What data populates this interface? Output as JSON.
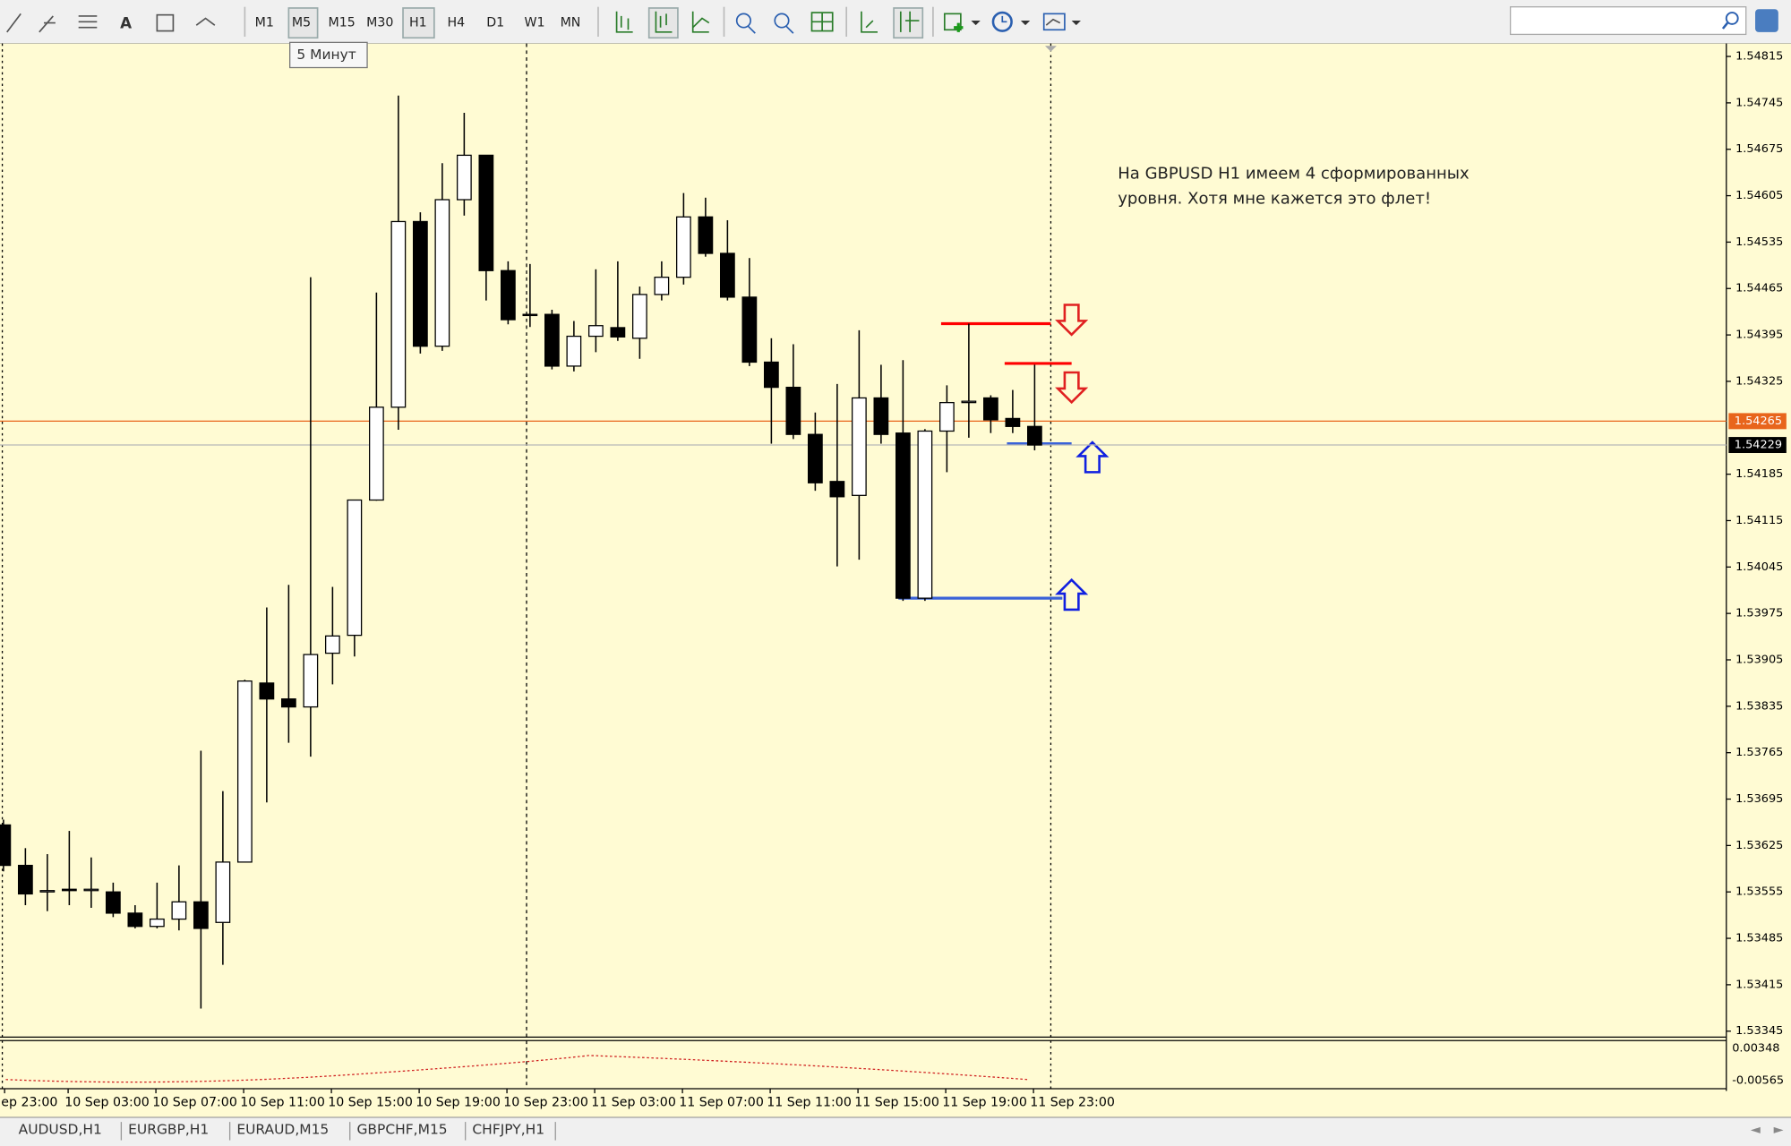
{
  "toolbar": {
    "timeframes": [
      "M1",
      "M5",
      "M15",
      "M30",
      "H1",
      "H4",
      "D1",
      "W1",
      "MN"
    ],
    "tooltip": "5 Минут"
  },
  "chart": {
    "type": "candlestick",
    "annotation": [
      "На GBPUSD H1 имеем 4 сформированных",
      "уровня.  Хотя мне кажется это флет!"
    ],
    "candles": [
      [
        1.53656,
        1.53664,
        1.53586,
        1.53595
      ],
      [
        1.53595,
        1.53621,
        1.53535,
        1.53552
      ],
      [
        1.53555,
        1.53612,
        1.53526,
        1.53557
      ],
      [
        1.53559,
        1.53647,
        1.53535,
        1.53557
      ],
      [
        1.53557,
        1.53607,
        1.53531,
        1.53559
      ],
      [
        1.53555,
        1.53569,
        1.53517,
        1.53523
      ],
      [
        1.53523,
        1.53535,
        1.535,
        1.53503
      ],
      [
        1.53503,
        1.53569,
        1.535,
        1.53514
      ],
      [
        1.53514,
        1.53595,
        1.53497,
        1.5354
      ],
      [
        1.5354,
        1.53768,
        1.53379,
        1.535
      ],
      [
        1.53509,
        1.53707,
        1.53445,
        1.536
      ],
      [
        1.536,
        1.53875,
        1.536,
        1.53873
      ],
      [
        1.5387,
        1.53984,
        1.5369,
        1.53846
      ],
      [
        1.53846,
        1.54018,
        1.5378,
        1.53834
      ],
      [
        1.53834,
        1.54482,
        1.53759,
        1.53913
      ],
      [
        1.53915,
        1.54015,
        1.53868,
        1.53941
      ],
      [
        1.53942,
        1.54146,
        1.5391,
        1.54146
      ],
      [
        1.54146,
        1.54459,
        1.54145,
        1.54286
      ],
      [
        1.54286,
        1.54756,
        1.54252,
        1.54566
      ],
      [
        1.54566,
        1.5458,
        1.54367,
        1.54378
      ],
      [
        1.54378,
        1.54654,
        1.54371,
        1.54599
      ],
      [
        1.54599,
        1.5473,
        1.54575,
        1.54666
      ],
      [
        1.54666,
        1.54666,
        1.54447,
        1.54492
      ],
      [
        1.54492,
        1.54506,
        1.54411,
        1.54418
      ],
      [
        1.54426,
        1.54502,
        1.54407,
        1.54425
      ],
      [
        1.54426,
        1.54433,
        1.54343,
        1.54348
      ],
      [
        1.54348,
        1.54416,
        1.5434,
        1.54393
      ],
      [
        1.54393,
        1.54494,
        1.54369,
        1.54409
      ],
      [
        1.54406,
        1.54506,
        1.54386,
        1.54392
      ],
      [
        1.5439,
        1.54468,
        1.54359,
        1.54456
      ],
      [
        1.54456,
        1.54506,
        1.54447,
        1.54482
      ],
      [
        1.54482,
        1.54609,
        1.54471,
        1.54573
      ],
      [
        1.54573,
        1.54602,
        1.54513,
        1.54518
      ],
      [
        1.54518,
        1.54568,
        1.54447,
        1.54452
      ],
      [
        1.54452,
        1.54511,
        1.54348,
        1.54354
      ],
      [
        1.54354,
        1.5439,
        1.54231,
        1.54316
      ],
      [
        1.54316,
        1.54381,
        1.54238,
        1.54245
      ],
      [
        1.54245,
        1.54278,
        1.5416,
        1.54172
      ],
      [
        1.54174,
        1.54321,
        1.54046,
        1.54151
      ],
      [
        1.54153,
        1.54402,
        1.54056,
        1.543
      ],
      [
        1.543,
        1.5435,
        1.54231,
        1.54245
      ],
      [
        1.54247,
        1.54357,
        1.53994,
        1.53998
      ],
      [
        1.53998,
        1.54253,
        1.53994,
        1.5425
      ],
      [
        1.5425,
        1.54319,
        1.54188,
        1.54293
      ],
      [
        1.54293,
        1.54412,
        1.5424,
        1.54295
      ],
      [
        1.543,
        1.54304,
        1.54247,
        1.54267
      ],
      [
        1.54269,
        1.54312,
        1.54247,
        1.54257
      ],
      [
        1.54257,
        1.5435,
        1.54221,
        1.54229
      ]
    ],
    "ylim": [
      1.53336,
      1.54831
    ],
    "yticks": [
      1.54815,
      1.54745,
      1.54675,
      1.54605,
      1.54535,
      1.54465,
      1.54395,
      1.54325,
      1.54185,
      1.54115,
      1.54045,
      1.53975,
      1.53905,
      1.53835,
      1.53765,
      1.53695,
      1.53625,
      1.53555,
      1.53485,
      1.53415,
      1.53345
    ],
    "price_tags": [
      {
        "value": 1.54265,
        "color": "#e8651c"
      },
      {
        "value": 1.54229,
        "color": "#000000"
      }
    ],
    "levels": [
      {
        "value": 1.54412,
        "color": "#ff0000"
      },
      {
        "value": 1.54352,
        "color": "#ff0000"
      },
      {
        "value": 1.54231,
        "color": "#3a62d8"
      },
      {
        "value": 1.53998,
        "color": "#3a62d8"
      }
    ],
    "time_labels": [
      "ep 23:00",
      "10 Sep 03:00",
      "10 Sep 07:00",
      "10 Sep 11:00",
      "10 Sep 15:00",
      "10 Sep 19:00",
      "10 Sep 23:00",
      "11 Sep 03:00",
      "11 Sep 07:00",
      "11 Sep 11:00",
      "11 Sep 15:00",
      "11 Sep 19:00",
      "11 Sep 23:00"
    ],
    "indicator": {
      "yticks": [
        0.00348,
        -0.00565
      ]
    }
  },
  "tabs": [
    "AUDUSD,H1",
    "EURGBP,H1",
    "EURAUD,M15",
    "GBPCHF,M15",
    "CHFJPY,H1"
  ]
}
